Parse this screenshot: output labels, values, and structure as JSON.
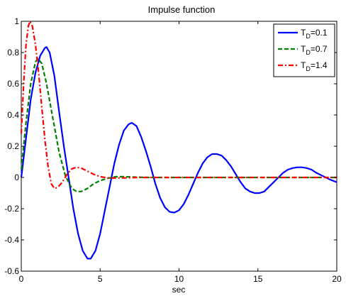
{
  "chart_data": {
    "type": "line",
    "title": "Impulse function",
    "xlabel": "sec",
    "ylabel": "",
    "xlim": [
      0,
      20
    ],
    "ylim": [
      -0.6,
      1
    ],
    "xticks": [
      "0",
      "5",
      "10",
      "15",
      "20"
    ],
    "yticks": [
      "-0.6",
      "-0.4",
      "-0.2",
      "0",
      "0.2",
      "0.4",
      "0.6",
      "0.8",
      "1"
    ],
    "grid": false,
    "legend_position": "top-right",
    "series": [
      {
        "name_main": "T",
        "name_sub": "D",
        "name_value": "=0.1",
        "color": "#0000ff",
        "style": "solid",
        "points": [
          [
            0,
            0
          ],
          [
            0.3,
            0.25
          ],
          [
            0.6,
            0.5
          ],
          [
            0.9,
            0.67
          ],
          [
            1.2,
            0.78
          ],
          [
            1.5,
            0.83
          ],
          [
            1.6,
            0.835
          ],
          [
            1.8,
            0.8
          ],
          [
            2.1,
            0.65
          ],
          [
            2.4,
            0.42
          ],
          [
            2.7,
            0.2
          ],
          [
            3.0,
            0.0
          ],
          [
            3.3,
            -0.2
          ],
          [
            3.6,
            -0.36
          ],
          [
            3.9,
            -0.47
          ],
          [
            4.2,
            -0.52
          ],
          [
            4.4,
            -0.52
          ],
          [
            4.7,
            -0.47
          ],
          [
            5.0,
            -0.36
          ],
          [
            5.3,
            -0.21
          ],
          [
            5.6,
            -0.06
          ],
          [
            5.9,
            0.09
          ],
          [
            6.2,
            0.21
          ],
          [
            6.5,
            0.3
          ],
          [
            6.8,
            0.34
          ],
          [
            7.0,
            0.35
          ],
          [
            7.3,
            0.33
          ],
          [
            7.6,
            0.26
          ],
          [
            7.9,
            0.17
          ],
          [
            8.2,
            0.07
          ],
          [
            8.5,
            -0.04
          ],
          [
            8.8,
            -0.13
          ],
          [
            9.1,
            -0.19
          ],
          [
            9.4,
            -0.22
          ],
          [
            9.7,
            -0.225
          ],
          [
            10.0,
            -0.21
          ],
          [
            10.3,
            -0.17
          ],
          [
            10.6,
            -0.11
          ],
          [
            10.9,
            -0.04
          ],
          [
            11.2,
            0.03
          ],
          [
            11.5,
            0.09
          ],
          [
            11.8,
            0.13
          ],
          [
            12.1,
            0.15
          ],
          [
            12.4,
            0.15
          ],
          [
            12.7,
            0.14
          ],
          [
            13.0,
            0.11
          ],
          [
            13.3,
            0.07
          ],
          [
            13.6,
            0.02
          ],
          [
            13.9,
            -0.03
          ],
          [
            14.2,
            -0.07
          ],
          [
            14.5,
            -0.09
          ],
          [
            14.8,
            -0.1
          ],
          [
            15.1,
            -0.1
          ],
          [
            15.4,
            -0.09
          ],
          [
            15.7,
            -0.06
          ],
          [
            16.0,
            -0.03
          ],
          [
            16.3,
            0.0
          ],
          [
            16.6,
            0.03
          ],
          [
            16.9,
            0.05
          ],
          [
            17.2,
            0.06
          ],
          [
            17.5,
            0.065
          ],
          [
            17.8,
            0.065
          ],
          [
            18.1,
            0.06
          ],
          [
            18.4,
            0.05
          ],
          [
            18.7,
            0.03
          ],
          [
            19.0,
            0.015
          ],
          [
            19.3,
            0.0
          ],
          [
            19.6,
            -0.015
          ],
          [
            20.0,
            -0.03
          ]
        ]
      },
      {
        "name_main": "T",
        "name_sub": "D",
        "name_value": "=0.7",
        "color": "#008000",
        "style": "dashed",
        "points": [
          [
            0,
            0.05
          ],
          [
            0.3,
            0.35
          ],
          [
            0.6,
            0.6
          ],
          [
            0.9,
            0.74
          ],
          [
            1.05,
            0.76
          ],
          [
            1.3,
            0.73
          ],
          [
            1.6,
            0.6
          ],
          [
            2.0,
            0.38
          ],
          [
            2.4,
            0.16
          ],
          [
            2.8,
            0.01
          ],
          [
            3.2,
            -0.07
          ],
          [
            3.5,
            -0.09
          ],
          [
            3.8,
            -0.09
          ],
          [
            4.2,
            -0.07
          ],
          [
            4.6,
            -0.04
          ],
          [
            5.0,
            -0.02
          ],
          [
            5.5,
            -0.005
          ],
          [
            6.0,
            0.005
          ],
          [
            6.5,
            0.005
          ],
          [
            7.0,
            0.003
          ],
          [
            8.0,
            0.0
          ],
          [
            10.0,
            0.0
          ],
          [
            14.0,
            0.0
          ],
          [
            20.0,
            0.0
          ]
        ]
      },
      {
        "name_main": "T",
        "name_sub": "D",
        "name_value": "=1.4",
        "color": "#ff0000",
        "style": "dashdot",
        "points": [
          [
            0,
            0.28
          ],
          [
            0.15,
            0.6
          ],
          [
            0.3,
            0.85
          ],
          [
            0.45,
            0.97
          ],
          [
            0.55,
            1.0
          ],
          [
            0.7,
            0.97
          ],
          [
            0.9,
            0.85
          ],
          [
            1.1,
            0.67
          ],
          [
            1.3,
            0.45
          ],
          [
            1.5,
            0.24
          ],
          [
            1.7,
            0.07
          ],
          [
            1.9,
            -0.04
          ],
          [
            2.1,
            -0.07
          ],
          [
            2.3,
            -0.065
          ],
          [
            2.6,
            -0.03
          ],
          [
            2.9,
            0.02
          ],
          [
            3.2,
            0.055
          ],
          [
            3.5,
            0.065
          ],
          [
            3.8,
            0.06
          ],
          [
            4.2,
            0.04
          ],
          [
            4.6,
            0.02
          ],
          [
            5.0,
            0.005
          ],
          [
            5.5,
            -0.003
          ],
          [
            6.0,
            -0.004
          ],
          [
            6.5,
            -0.003
          ],
          [
            7.5,
            0.0
          ],
          [
            10.0,
            0.0
          ],
          [
            20.0,
            0.0
          ]
        ]
      }
    ]
  }
}
